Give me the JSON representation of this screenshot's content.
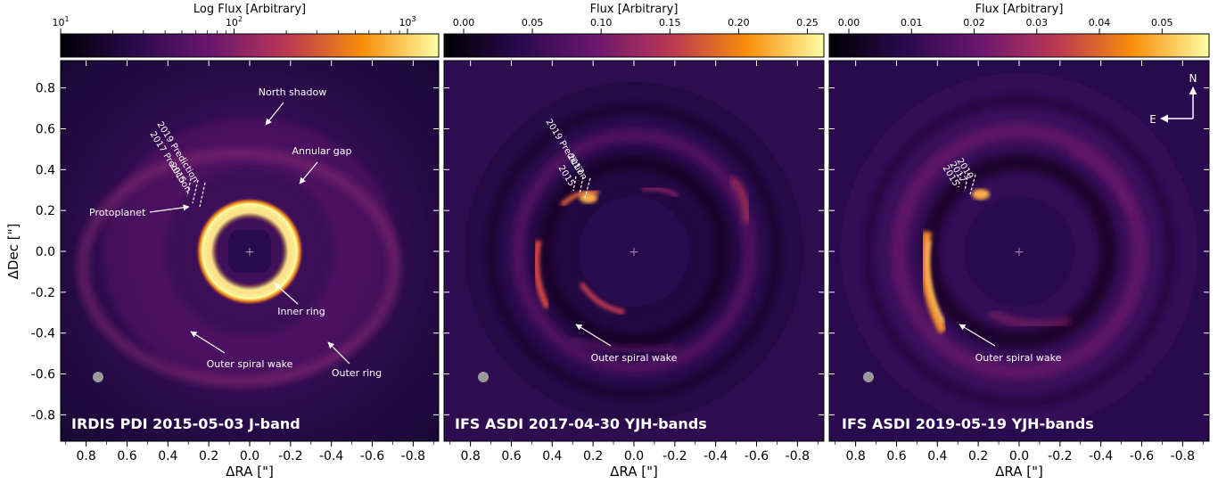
{
  "panels": [
    {
      "colorbar_title": "Log Flux [Arbitrary]",
      "colorbar_ticks": [
        "10",
        "10",
        "10"
      ],
      "colorbar_exponents": [
        "1",
        "2",
        "3"
      ],
      "label": "IRDIS PDI 2015-05-03 J-band",
      "annotations": {
        "north_shadow": "North shadow",
        "annular_gap": "Annular gap",
        "protoplanet": "Protoplanet",
        "inner_ring": "Inner ring",
        "outer_spiral_wake": "Outer spiral wake",
        "outer_ring": "Outer ring"
      },
      "predictions": [
        "2019 Prediction",
        "2017 Prediction",
        "2015"
      ]
    },
    {
      "colorbar_title": "Flux [Arbitrary]",
      "colorbar_ticks": [
        "0.00",
        "0.05",
        "0.10",
        "0.15",
        "0.20",
        "0.25"
      ],
      "label": "IFS ASDI 2017-04-30 YJH-bands",
      "annotations": {
        "outer_spiral_wake": "Outer spiral wake"
      },
      "predictions": [
        "2019 Prediction",
        "2017",
        "2015"
      ]
    },
    {
      "colorbar_title": "Flux [Arbitrary]",
      "colorbar_ticks": [
        "0.00",
        "0.01",
        "0.02",
        "0.03",
        "0.04",
        "0.05"
      ],
      "label": "IFS ASDI 2019-05-19 YJH-bands",
      "annotations": {
        "outer_spiral_wake": "Outer spiral wake"
      },
      "predictions": [
        "2019",
        "2017",
        "2015"
      ],
      "compass": {
        "north": "N",
        "east": "E"
      }
    }
  ],
  "xlabel": "ΔRA [\"]",
  "ylabel": "ΔDec [\"]",
  "x_ticks": [
    "0.8",
    "0.6",
    "0.4",
    "0.2",
    "0.0",
    "-0.2",
    "-0.4",
    "-0.6",
    "-0.8"
  ],
  "y_ticks": [
    "0.8",
    "0.6",
    "0.4",
    "0.2",
    "0.0",
    "-0.2",
    "-0.4",
    "-0.6",
    "-0.8"
  ],
  "colormap": [
    "#000004",
    "#420a68",
    "#932667",
    "#dd513a",
    "#fca50a",
    "#fcffa4"
  ]
}
